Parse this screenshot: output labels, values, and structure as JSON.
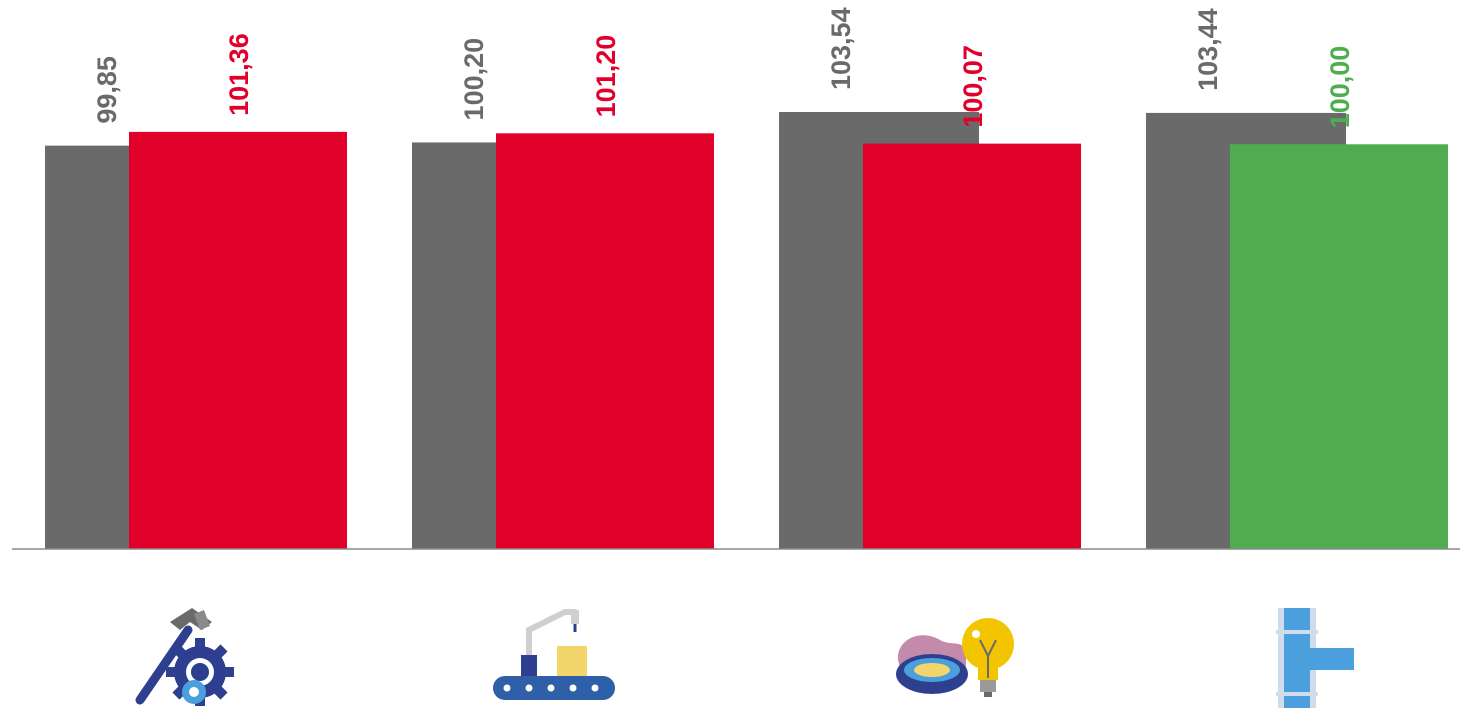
{
  "chart_data": {
    "type": "bar",
    "categories": [
      "",
      "",
      "",
      ""
    ],
    "series": [
      {
        "values": [
          99.85,
          100.2,
          103.54,
          103.44
        ],
        "labels": [
          "99,85",
          "100,20",
          "103,54",
          "103,44"
        ]
      },
      {
        "values": [
          101.36,
          101.2,
          100.07,
          100.0
        ],
        "labels": [
          "101,36",
          "101,20",
          "100,07",
          "100,00"
        ]
      }
    ],
    "bar_colors": [
      [
        "#6a6a6a",
        "#e0002a"
      ],
      [
        "#6a6a6a",
        "#e0002a"
      ],
      [
        "#6a6a6a",
        "#e0002a"
      ],
      [
        "#6a6a6a",
        "#4fad50"
      ]
    ],
    "label_colors": [
      [
        "#6a6a6a",
        "#e0002a"
      ],
      [
        "#6a6a6a",
        "#e0002a"
      ],
      [
        "#6a6a6a",
        "#e0002a"
      ],
      [
        "#6a6a6a",
        "#4fad50"
      ]
    ],
    "ylim": [
      55.6,
      103.54
    ],
    "title": "",
    "xlabel": "",
    "ylabel": "",
    "grid": false,
    "legend": "none"
  },
  "icons": [
    "hammer-gear-icon",
    "conveyor-robot-icon",
    "gas-electricity-icon",
    "water-pipe-icon"
  ]
}
